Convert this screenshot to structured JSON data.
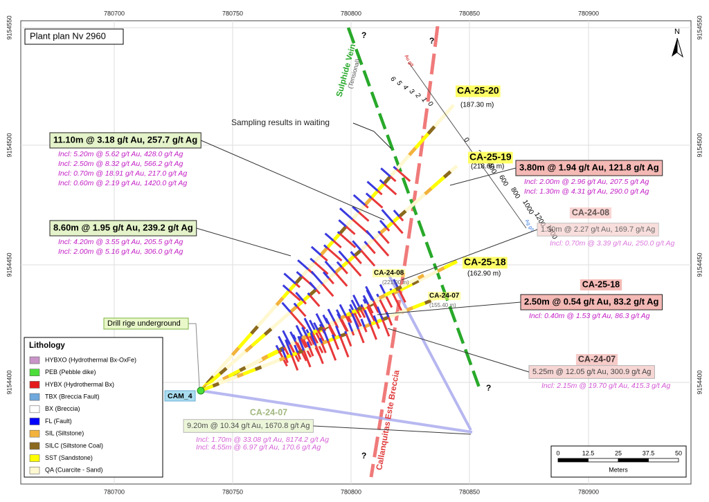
{
  "header": {
    "title": "Plant plan Nv 2960",
    "north": "N"
  },
  "grid": {
    "x_labels": [
      780700,
      780750,
      780800,
      780850,
      780900
    ],
    "y_labels": [
      9154550,
      9154500,
      9154450,
      9154400
    ]
  },
  "features": {
    "vein": "Sulphide Vein",
    "vein_note": "(Tensional)",
    "breccia": "Callanquitas Este Breccia",
    "unknown": "?",
    "pending": "Sampling results in waiting",
    "drill_site": "Drill rige underground",
    "collar": "CAM_4"
  },
  "drill_labels": [
    {
      "name": "CA-25-20",
      "length": "(187.30 m)"
    },
    {
      "name": "CA-25-19",
      "length": "(218.60 m)"
    },
    {
      "name": "CA-25-18",
      "length": "(162.90 m)"
    },
    {
      "name": "CA-24-08",
      "length": "(221.00 m)"
    },
    {
      "name": "CA-24-07",
      "length": "(155.40 m)"
    }
  ],
  "annotations": [
    {
      "result": "11.10m @ 3.18 g/t Au, 257.7 g/t Ag",
      "includes": [
        "Incl: 5.20m @ 5.62 g/t Au, 428.0 g/t Ag",
        "Incl: 2.50m @ 8.32 g/t Au, 566.2 g/t Ag",
        "Incl: 0.70m @ 18.91 g/t Au, 217.0 g/t Ag",
        "Incl: 0.60m @ 2.19 g/t Au, 1420.0 g/t Ag"
      ]
    },
    {
      "result": "8.60m @ 1.95 g/t Au, 239.2 g/t Ag",
      "includes": [
        "Incl: 4.20m @ 3.55 g/t Au, 205.5 g/t Ag",
        "Incl: 2.00m @ 5.16 g/t Au, 306.0 g/t Ag"
      ]
    },
    {
      "result": "3.80m @ 1.94 g/t Au, 121.8 g/t Ag",
      "includes": [
        "Incl: 2.00m @ 2.96 g/t Au, 207.5 g/t Ag",
        "Incl: 1.30m @ 4.31 g/t Au, 290.0 g/t Ag"
      ]
    },
    {
      "name": "CA-24-08",
      "result": "1.30m @ 2.27 g/t Au, 169.7 g/t Ag",
      "includes": [
        "Incl: 0.70m @ 3.39 g/t Au, 250.0 g/t Ag"
      ]
    },
    {
      "name": "CA-25-18",
      "result": "2.50m @ 0.54 g/t Au, 83.2 g/t Ag",
      "includes": [
        "Incl: 0.40m @ 1.53 g/t Au, 86.3 g/t Ag"
      ]
    },
    {
      "name": "CA-24-07",
      "result": "5.25m @ 12.05 g/t Au, 300.9 g/t Ag",
      "includes": [
        "Incl: 2.15m @ 19.70 g/t Au, 415.3 g/t Ag"
      ]
    },
    {
      "name": "CA-24-07",
      "result": "9.20m @ 10.34 g/t Au, 1670.8 g/t Ag",
      "includes": [
        "Incl: 1.70m @ 33.08 g/t Au, 8174.2 g/t Ag",
        "Incl: 4.55m @ 6.97 g/t Au, 170.6 g/t Ag"
      ]
    }
  ],
  "depth_scales": {
    "au_label": "Au g/t",
    "ag_label": "Ag g/t",
    "au_ticks": [
      "6",
      "5",
      "4",
      "3",
      "2",
      "1",
      "0"
    ],
    "ag_ticks": [
      "0",
      "200",
      "400",
      "600",
      "800",
      "1000",
      "1200",
      "1400"
    ]
  },
  "legend": {
    "title": "Lithology",
    "items": [
      {
        "label": "HYBXO (Hydrothermal Bx-OxFe)",
        "color": "#c994c7"
      },
      {
        "label": "PEB (Pebble dike)",
        "color": "#4cdd3a"
      },
      {
        "label": "HYBX (Hydrothermal Bx)",
        "color": "#e41a1c"
      },
      {
        "label": "TBX (Breccia Fault)",
        "color": "#6fa8dc"
      },
      {
        "label": "BX (Breccia)",
        "color": "#ffffff"
      },
      {
        "label": "FL (Fault)",
        "color": "#0000ff"
      },
      {
        "label": "SIL (Siltstone)",
        "color": "#f2b23c"
      },
      {
        "label": "SILC (Siltstone Coal)",
        "color": "#8b6a1e"
      },
      {
        "label": "SST (Sandstone)",
        "color": "#ffff00"
      },
      {
        "label": "QA (Cuarcite - Sand)",
        "color": "#fff8d0"
      }
    ]
  },
  "scale_bar": {
    "ticks": [
      "0",
      "12.5",
      "25",
      "37.5",
      "50"
    ],
    "unit": "Meters"
  }
}
